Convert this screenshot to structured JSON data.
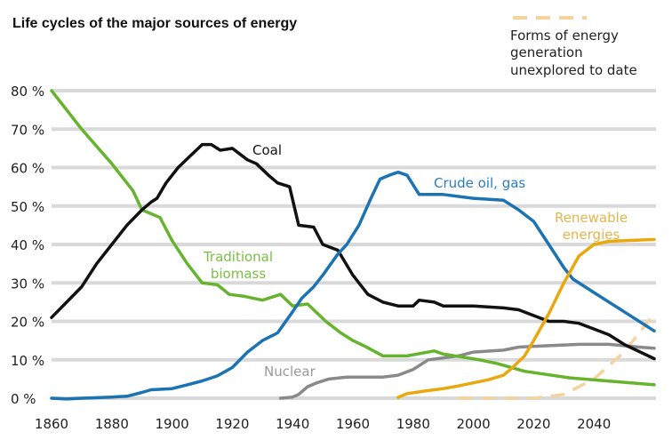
{
  "chart_data": {
    "type": "line",
    "title": "Life cycles of the major sources of energy",
    "xlabel": "",
    "ylabel": "",
    "xlim": [
      1860,
      2060
    ],
    "ylim": [
      0,
      80
    ],
    "grid": true,
    "x_ticks": [
      "1860",
      "1880",
      "1900",
      "1920",
      "1940",
      "1960",
      "1980",
      "2000",
      "2020",
      "2040"
    ],
    "y_ticks": [
      "0 %",
      "10 %",
      "20 %",
      "30 %",
      "40 %",
      "50 %",
      "60 %",
      "70 %",
      "80 %"
    ],
    "legend": {
      "placement": "top-right",
      "lines": [
        "Forms of energy",
        "generation",
        "unexplored to date"
      ]
    },
    "series": [
      {
        "name": "Coal",
        "label_lines": [
          "Coal"
        ],
        "color": "#111111",
        "label_color": "#111111",
        "points": [
          [
            1860,
            21
          ],
          [
            1865,
            25
          ],
          [
            1870,
            29
          ],
          [
            1875,
            35
          ],
          [
            1880,
            40
          ],
          [
            1885,
            45
          ],
          [
            1890,
            49
          ],
          [
            1893,
            51
          ],
          [
            1895,
            52
          ],
          [
            1898,
            56
          ],
          [
            1902,
            60
          ],
          [
            1906,
            63
          ],
          [
            1910,
            66
          ],
          [
            1913,
            66
          ],
          [
            1916,
            64.5
          ],
          [
            1920,
            65
          ],
          [
            1925,
            62
          ],
          [
            1928,
            61
          ],
          [
            1932,
            58
          ],
          [
            1935,
            56
          ],
          [
            1939,
            55
          ],
          [
            1942,
            45
          ],
          [
            1947,
            44.5
          ],
          [
            1950,
            40
          ],
          [
            1955,
            38.5
          ],
          [
            1960,
            32
          ],
          [
            1965,
            27
          ],
          [
            1970,
            25
          ],
          [
            1975,
            24
          ],
          [
            1980,
            24
          ],
          [
            1982,
            25.5
          ],
          [
            1987,
            25
          ],
          [
            1990,
            24
          ],
          [
            2000,
            24
          ],
          [
            2010,
            23.5
          ],
          [
            2015,
            23
          ],
          [
            2020,
            21.5
          ],
          [
            2025,
            20
          ],
          [
            2030,
            20
          ],
          [
            2035,
            19.5
          ],
          [
            2040,
            18
          ],
          [
            2045,
            16.5
          ],
          [
            2050,
            14
          ],
          [
            2060,
            10.3
          ]
        ]
      },
      {
        "name": "Crude oil, gas",
        "label_lines": [
          "Crude oil, gas"
        ],
        "color": "#1b73b3",
        "label_color": "#2a7fc0",
        "points": [
          [
            1860,
            0
          ],
          [
            1865,
            -0.2
          ],
          [
            1870,
            0
          ],
          [
            1880,
            0.3
          ],
          [
            1885,
            0.5
          ],
          [
            1890,
            1.5
          ],
          [
            1893,
            2.2
          ],
          [
            1900,
            2.5
          ],
          [
            1905,
            3.5
          ],
          [
            1910,
            4.5
          ],
          [
            1915,
            5.8
          ],
          [
            1920,
            8
          ],
          [
            1925,
            12
          ],
          [
            1930,
            15
          ],
          [
            1935,
            17
          ],
          [
            1940,
            22.5
          ],
          [
            1943,
            26
          ],
          [
            1947,
            29
          ],
          [
            1950,
            32
          ],
          [
            1955,
            37.5
          ],
          [
            1958,
            40
          ],
          [
            1962,
            45
          ],
          [
            1966,
            52
          ],
          [
            1969,
            57
          ],
          [
            1972,
            58
          ],
          [
            1975,
            58.8
          ],
          [
            1978,
            58
          ],
          [
            1982,
            53
          ],
          [
            1990,
            53
          ],
          [
            2000,
            52
          ],
          [
            2010,
            51.5
          ],
          [
            2015,
            49
          ],
          [
            2020,
            46
          ],
          [
            2025,
            40
          ],
          [
            2030,
            34
          ],
          [
            2033,
            31
          ],
          [
            2040,
            27.5
          ],
          [
            2050,
            22.5
          ],
          [
            2060,
            17.5
          ]
        ]
      },
      {
        "name": "Traditional biomass",
        "label_lines": [
          "Traditional",
          "biomass"
        ],
        "color": "#66b32e",
        "label_color": "#7cbf44",
        "points": [
          [
            1860,
            80
          ],
          [
            1870,
            70
          ],
          [
            1880,
            61
          ],
          [
            1887,
            54
          ],
          [
            1890,
            49
          ],
          [
            1896,
            47
          ],
          [
            1900,
            41
          ],
          [
            1905,
            35
          ],
          [
            1910,
            30
          ],
          [
            1915,
            29.5
          ],
          [
            1919,
            27
          ],
          [
            1924,
            26.5
          ],
          [
            1930,
            25.5
          ],
          [
            1936,
            27
          ],
          [
            1940,
            24
          ],
          [
            1945,
            24.5
          ],
          [
            1951,
            20
          ],
          [
            1956,
            17
          ],
          [
            1960,
            15
          ],
          [
            1964,
            13.5
          ],
          [
            1970,
            11
          ],
          [
            1978,
            11
          ],
          [
            1987,
            12.3
          ],
          [
            1990,
            11.5
          ],
          [
            2002,
            10
          ],
          [
            2008,
            9
          ],
          [
            2017,
            7
          ],
          [
            2032,
            5.3
          ],
          [
            2060,
            3.5
          ]
        ]
      },
      {
        "name": "Nuclear",
        "label_lines": [
          "Nuclear"
        ],
        "color": "#8a8a8a",
        "label_color": "#9a9a9a",
        "points": [
          [
            1936,
            0
          ],
          [
            1940,
            0.3
          ],
          [
            1942,
            1
          ],
          [
            1945,
            3
          ],
          [
            1948,
            4
          ],
          [
            1952,
            5
          ],
          [
            1958,
            5.5
          ],
          [
            1970,
            5.5
          ],
          [
            1975,
            6
          ],
          [
            1980,
            7.5
          ],
          [
            1985,
            10
          ],
          [
            1990,
            10.5
          ],
          [
            1995,
            11
          ],
          [
            2000,
            12
          ],
          [
            2010,
            12.5
          ],
          [
            2015,
            13.3
          ],
          [
            2020,
            13.5
          ],
          [
            2035,
            14
          ],
          [
            2045,
            14
          ],
          [
            2055,
            13.3
          ],
          [
            2060,
            13
          ]
        ]
      },
      {
        "name": "Renewable energies",
        "label_lines": [
          "Renewable",
          "energies"
        ],
        "color": "#e9a80e",
        "label_color": "#e6b44a",
        "points": [
          [
            1975,
            0.2
          ],
          [
            1978,
            1.2
          ],
          [
            1985,
            2
          ],
          [
            1990,
            2.5
          ],
          [
            1995,
            3.2
          ],
          [
            2000,
            4
          ],
          [
            2005,
            4.8
          ],
          [
            2010,
            6
          ],
          [
            2013,
            8
          ],
          [
            2017,
            11
          ],
          [
            2020,
            15
          ],
          [
            2025,
            22
          ],
          [
            2030,
            30
          ],
          [
            2035,
            37
          ],
          [
            2040,
            40
          ],
          [
            2045,
            40.8
          ],
          [
            2060,
            41.3
          ]
        ]
      },
      {
        "name": "Forms of energy generation unexplored to date",
        "color": "#f4d39f",
        "dashed": true,
        "points": [
          [
            1995,
            0
          ],
          [
            2020,
            0
          ],
          [
            2030,
            1
          ],
          [
            2040,
            5
          ],
          [
            2050,
            12
          ],
          [
            2060,
            22
          ]
        ]
      }
    ]
  }
}
